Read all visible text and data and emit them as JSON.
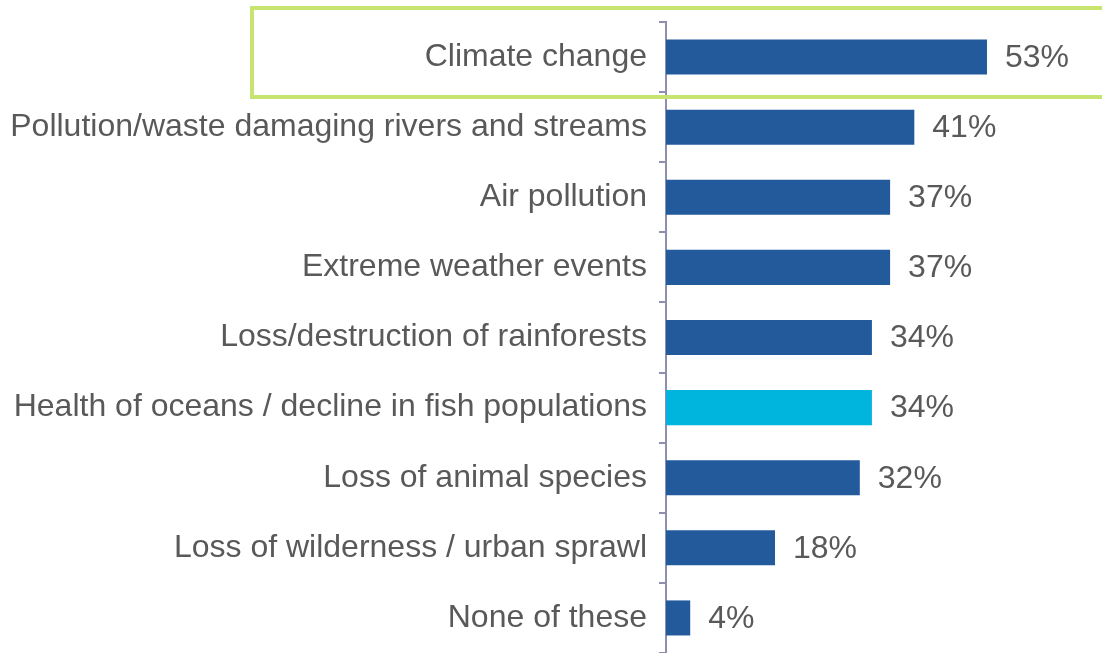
{
  "chart_data": {
    "type": "bar",
    "orientation": "horizontal",
    "categories": [
      "Climate change",
      "Pollution/waste damaging rivers and streams",
      "Air pollution",
      "Extreme weather events",
      "Loss/destruction of rainforests",
      "Health of oceans / decline in fish populations",
      "Loss of animal species",
      "Loss of wilderness / urban sprawl",
      "None of these"
    ],
    "values": [
      53,
      41,
      37,
      37,
      34,
      34,
      32,
      18,
      4
    ],
    "colors": [
      "#225a9c",
      "#225a9c",
      "#225a9c",
      "#225a9c",
      "#225a9c",
      "#00b5dd",
      "#225a9c",
      "#225a9c",
      "#225a9c"
    ],
    "value_labels": [
      "53%",
      "41%",
      "37%",
      "37%",
      "34%",
      "34%",
      "32%",
      "18%",
      "4%"
    ]
  }
}
